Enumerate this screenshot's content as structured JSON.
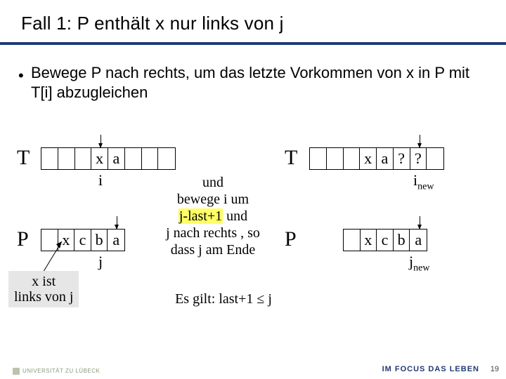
{
  "title": "Fall 1: P enthält x nur links von j",
  "bullet": "Bewege P nach rechts, um das letzte Vorkommen von x in P mit T[i] abzugleichen",
  "left": {
    "T_label": "T",
    "T_cells": [
      "",
      "",
      "",
      "x",
      "a",
      "",
      "",
      ""
    ],
    "T_idx": "i",
    "P_label": "P",
    "P_cells": [
      "",
      "x",
      "c",
      "b",
      "a"
    ],
    "P_idx": "j",
    "note": "x ist\nlinks von j"
  },
  "mid": {
    "text": "und\nbewege i um\nj-last+1 und\nj nach rechts , so\ndass j am Ende",
    "hl": "j-last+1",
    "below": "Es gilt: last+1 ≤ j"
  },
  "right": {
    "T_label": "T",
    "T_cells": [
      "",
      "",
      "",
      "x",
      "a",
      "?",
      "?",
      ""
    ],
    "T_idx": "i",
    "T_idx_sub": "new",
    "P_label": "P",
    "P_cells": [
      "",
      "x",
      "c",
      "b",
      "a"
    ],
    "P_idx": "j",
    "P_idx_sub": "new"
  },
  "footer": {
    "logo": "UNIVERSITÄT ZU LÜBECK",
    "tagline": "IM FOCUS DAS LEBEN",
    "page": "19"
  },
  "colors": {
    "rule": "#1f3b73",
    "highlight": "#ffff66",
    "noteBg": "#e6e6e6"
  }
}
